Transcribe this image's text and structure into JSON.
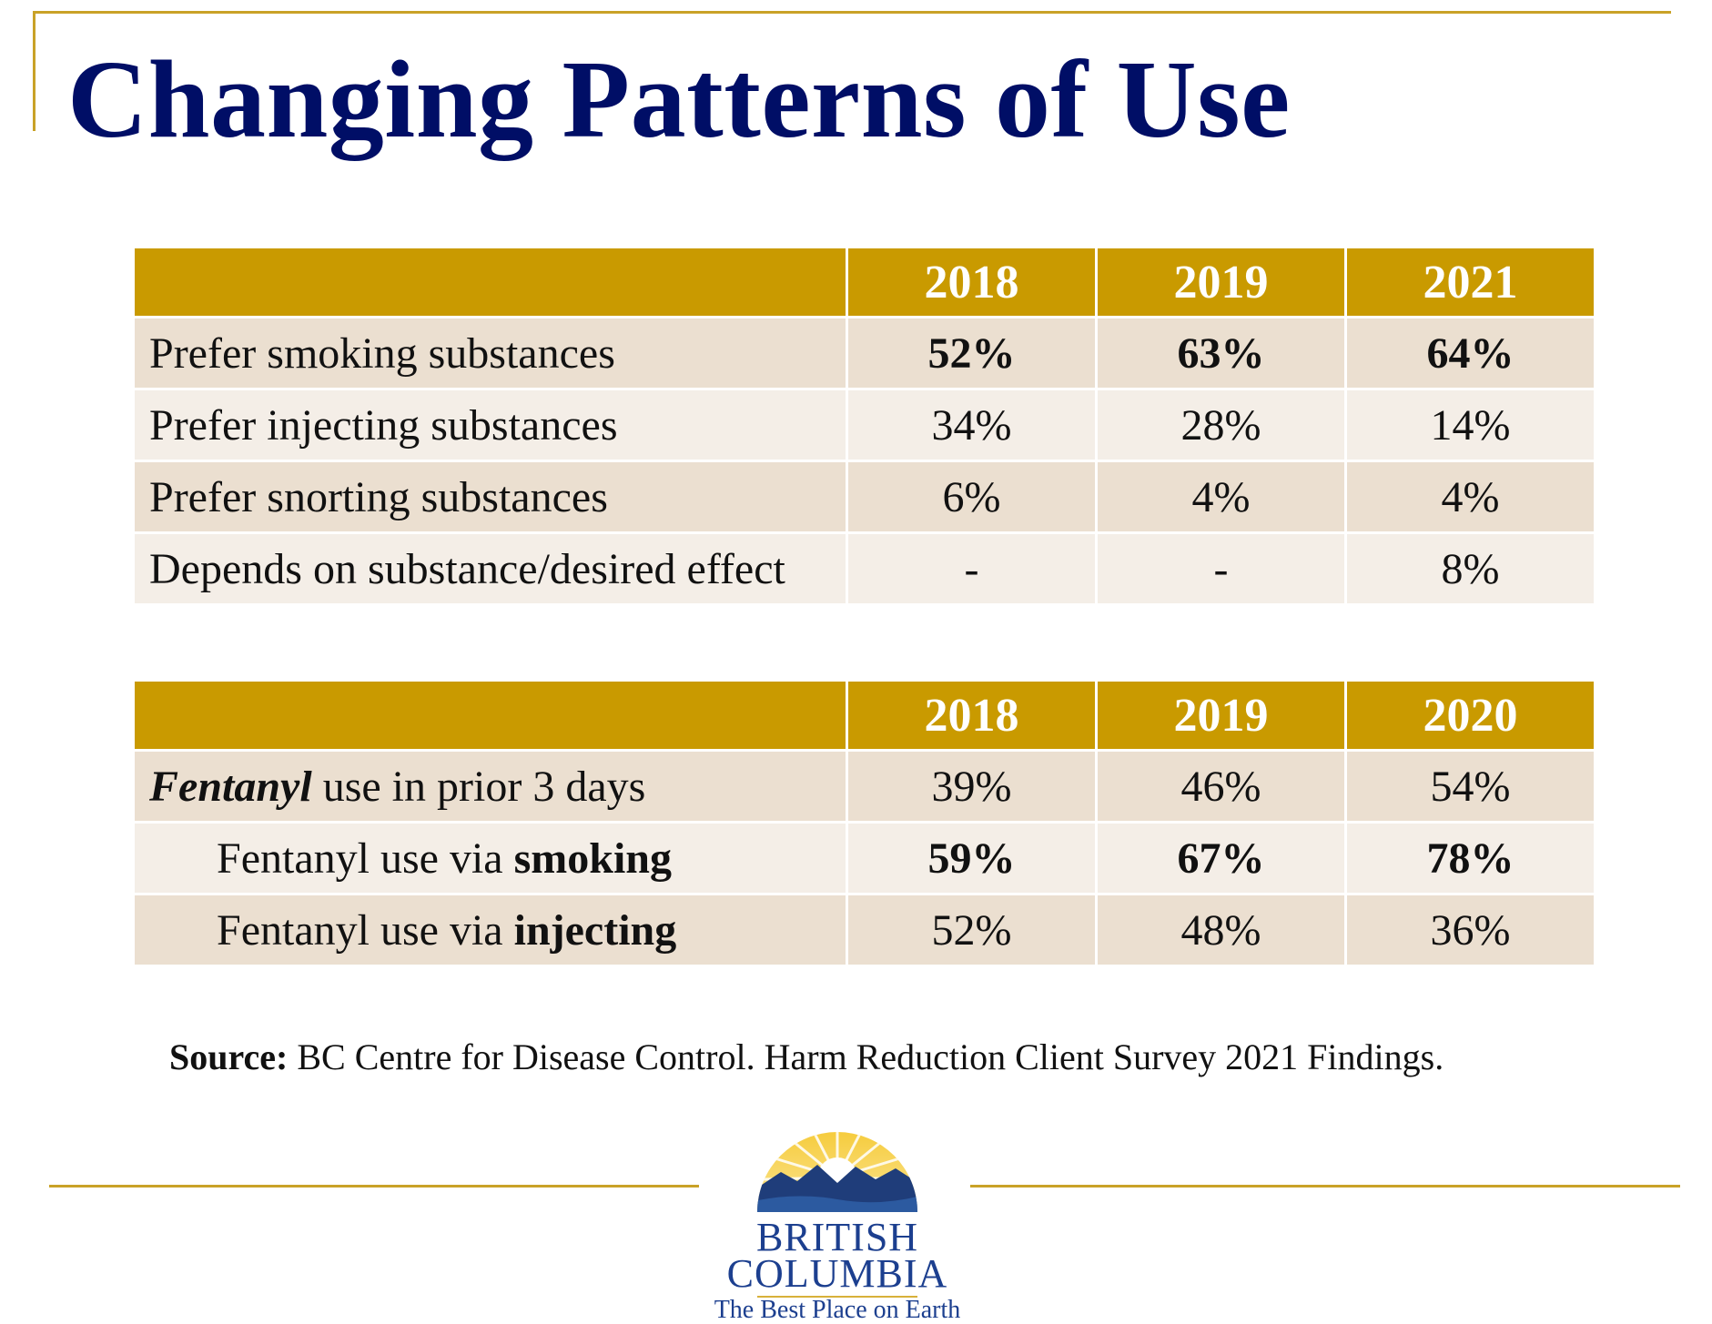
{
  "title": "Changing Patterns of Use",
  "colors": {
    "title": "#000e66",
    "accent_gold": "#c99a00",
    "row_dark": "#ebdfd0",
    "row_light": "#f4eee7"
  },
  "table1": {
    "headers": [
      "",
      "2018",
      "2019",
      "2021"
    ],
    "rows": [
      {
        "label": "Prefer smoking substances",
        "values": [
          "52%",
          "63%",
          "64%"
        ],
        "bold_values": true
      },
      {
        "label": "Prefer injecting substances",
        "values": [
          "34%",
          "28%",
          "14%"
        ]
      },
      {
        "label": "Prefer snorting substances",
        "values": [
          "6%",
          "4%",
          "4%"
        ]
      },
      {
        "label": "Depends on substance/desired effect",
        "values": [
          "-",
          "-",
          "8%"
        ]
      }
    ]
  },
  "table2": {
    "headers": [
      "",
      "2018",
      "2019",
      "2020"
    ],
    "rows": [
      {
        "label_bold_italic": "Fentanyl",
        "label_rest": " use in prior 3 days",
        "values": [
          "39%",
          "46%",
          "54%"
        ]
      },
      {
        "label_prefix": "Fentanyl use via ",
        "label_bold": "smoking",
        "values": [
          "59%",
          "67%",
          "78%"
        ],
        "bold_values": true
      },
      {
        "label_prefix": "Fentanyl use via ",
        "label_bold": "injecting",
        "values": [
          "52%",
          "48%",
          "36%"
        ]
      }
    ]
  },
  "source": {
    "label": "Source:",
    "text": " BC Centre for Disease Control. Harm Reduction Client Survey 2021 Findings."
  },
  "logo": {
    "line1": "BRITISH",
    "line2": "COLUMBIA",
    "tagline": "The Best Place on Earth",
    "icon": "bc-sun-mountains-logo"
  }
}
